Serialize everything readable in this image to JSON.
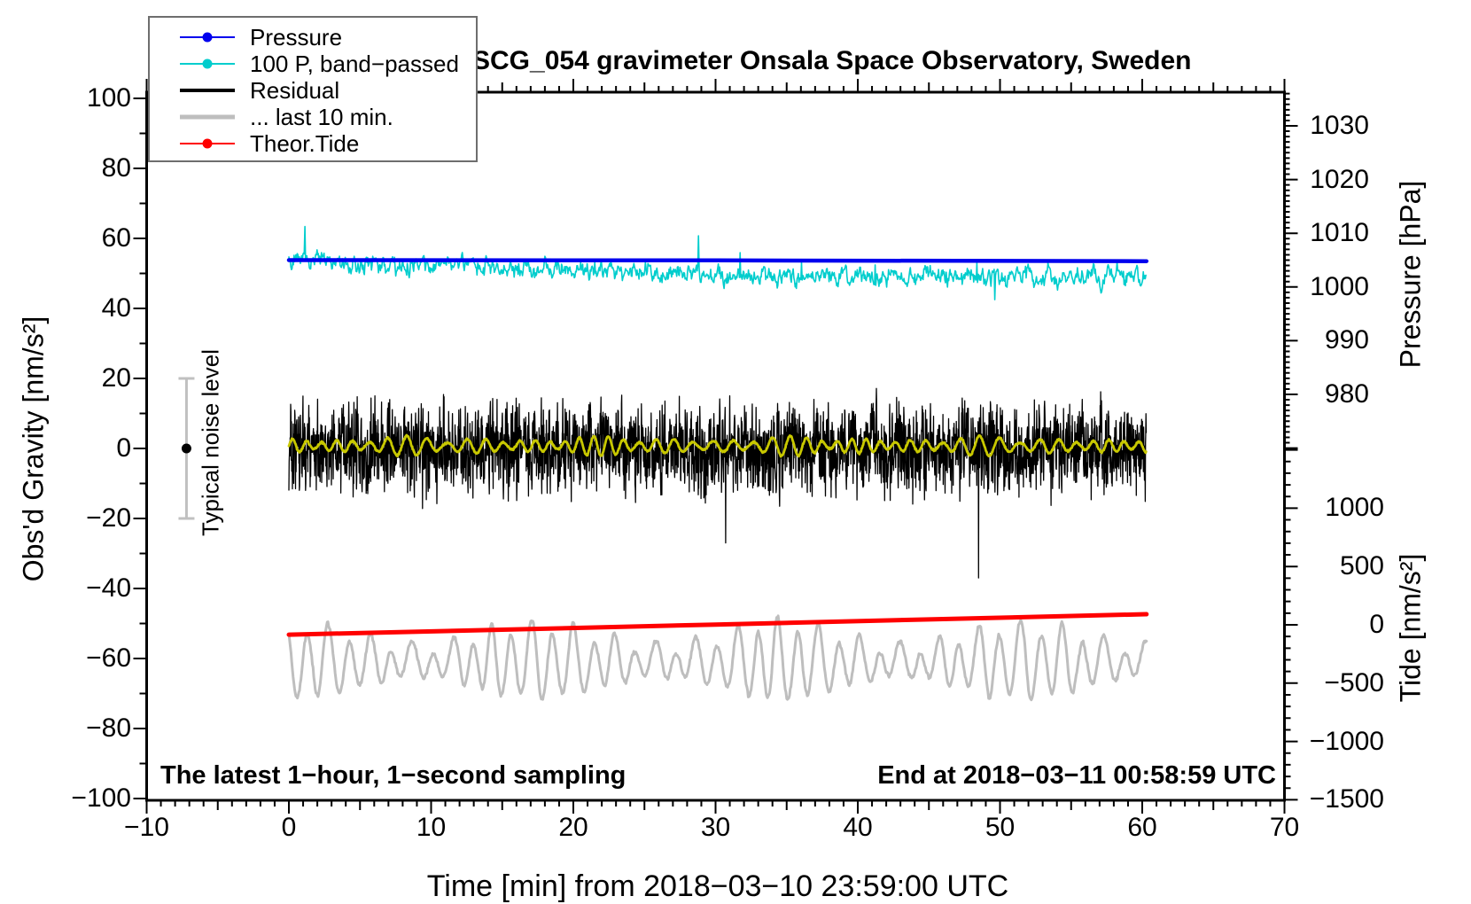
{
  "title": "SCG_054 gravimeter Onsala Space Observatory, Sweden",
  "annotations": {
    "sampling_note": "The latest 1−hour, 1−second sampling",
    "end_time": "End at 2018−03−11 00:58:59 UTC",
    "noise_label": "Typical noise level"
  },
  "legend": {
    "items": [
      {
        "label": "Pressure",
        "color": "#0000ee",
        "line_width": 2,
        "marker": true
      },
      {
        "label": "100 P, band−passed",
        "color": "#00cdcd",
        "line_width": 2,
        "marker": true
      },
      {
        "label": "Residual",
        "color": "#000000",
        "line_width": 4,
        "marker": false
      },
      {
        "label": "... last 10 min.",
        "color": "#bebebe",
        "line_width": 5,
        "marker": false
      },
      {
        "label": "Theor.Tide",
        "color": "#ff0000",
        "line_width": 2,
        "marker": true
      }
    ]
  },
  "chart_data": {
    "type": "line",
    "title": "SCG_054 gravimeter Onsala Space Observatory, Sweden",
    "grid": false,
    "legend_position": "top-left",
    "axes": {
      "x": {
        "title": "Time [min] from 2018−03−10 23:59:00 UTC",
        "range": [
          -10,
          70
        ],
        "minor_step": 1,
        "medium_step": 5,
        "major_step": 10,
        "tick_values": [
          -10,
          0,
          10,
          20,
          30,
          40,
          50,
          60,
          70
        ],
        "tick_labels": [
          "−10",
          "0",
          "10",
          "20",
          "30",
          "40",
          "50",
          "60",
          "70"
        ]
      },
      "gravity": {
        "title": "Obs'd Gravity [nm/s²]",
        "side": "left",
        "range": [
          -100,
          100
        ],
        "minor_step": 10,
        "major_step": 20,
        "tick_values": [
          100,
          80,
          60,
          40,
          20,
          0,
          -20,
          -40,
          -60,
          -80,
          -100
        ],
        "tick_labels": [
          "100",
          "80",
          "60",
          "40",
          "20",
          "0",
          "−20",
          "−40",
          "−60",
          "−80",
          "−100"
        ]
      },
      "pressure": {
        "title": "Pressure [hPa]",
        "side": "right-upper",
        "range": [
          970,
          1036
        ],
        "minor_step": 1,
        "major_step": 10,
        "tick_values": [
          1030,
          1020,
          1010,
          1000,
          990,
          980
        ],
        "tick_labels": [
          "1030",
          "1020",
          "1010",
          "1000",
          "990",
          "980"
        ]
      },
      "tide": {
        "title": "Tide [nm/s²]",
        "side": "right-lower",
        "range": [
          -1500,
          1500
        ],
        "minor_step": 100,
        "major_step": 500,
        "tick_values": [
          1000,
          500,
          0,
          -500,
          -1000,
          -1500
        ],
        "tick_labels": [
          "1000",
          "500",
          "0",
          "−500",
          "−1000",
          "−1500"
        ]
      }
    },
    "series": [
      {
        "name": "Pressure",
        "axis": "pressure",
        "unit": "hPa",
        "color": "#0000ee",
        "width": 4.5,
        "model": "points",
        "points": [
          [
            0,
            1005.0
          ],
          [
            30,
            1004.95
          ],
          [
            60.3,
            1004.8
          ]
        ]
      },
      {
        "name": "100 P, band−passed",
        "axis": "gravity",
        "unit": "nm/s²",
        "color": "#00cdcd",
        "width": 1.6,
        "model": "band-noise",
        "t_end": 60.3,
        "center_start": 53.6,
        "center_end": 49.3,
        "drift_minutes": 33,
        "sigma": 1.4,
        "spike": 7,
        "seed": 7
      },
      {
        "name": "Residual",
        "axis": "gravity",
        "unit": "nm/s²",
        "color": "#000000",
        "width": 1.3,
        "model": "dense-noise",
        "t_end": 60.3,
        "center": 0,
        "sigma": 6,
        "notable_spikes": [
          [
            30.7,
            -27
          ],
          [
            48.5,
            -37
          ]
        ],
        "seed": 11
      },
      {
        "name": "Residual smoothed",
        "axis": "gravity",
        "unit": "nm/s²",
        "color": "#c8c800",
        "width": 2.8,
        "model": "smooth-wiggle",
        "t_end": 60.3,
        "center": 0.7,
        "amp": 1.3,
        "omega": 5.3,
        "seed": 3
      },
      {
        "name": "... last 10 min.",
        "axis": "gravity",
        "unit": "nm/s²",
        "color": "#bebebe",
        "width": 3,
        "model": "oscillation",
        "t_end": 60.3,
        "center": -61,
        "amp_min": 4,
        "amp_max": 14,
        "value_min": -77.5,
        "value_max": -43.5,
        "omega": 4.5,
        "seed": 5
      },
      {
        "name": "Theor.Tide",
        "axis": "tide",
        "unit": "nm/s²",
        "color": "#ff0000",
        "width": 5,
        "model": "points",
        "points": [
          [
            0,
            -84
          ],
          [
            15,
            -42
          ],
          [
            30,
            2
          ],
          [
            45,
            46
          ],
          [
            60.3,
            91
          ]
        ]
      }
    ],
    "noise_bar": {
      "label": "Typical noise level",
      "x": -7.2,
      "center": 0,
      "half_range": 20,
      "bar_color": "#c0c0c0",
      "dot_color": "#000000"
    }
  }
}
